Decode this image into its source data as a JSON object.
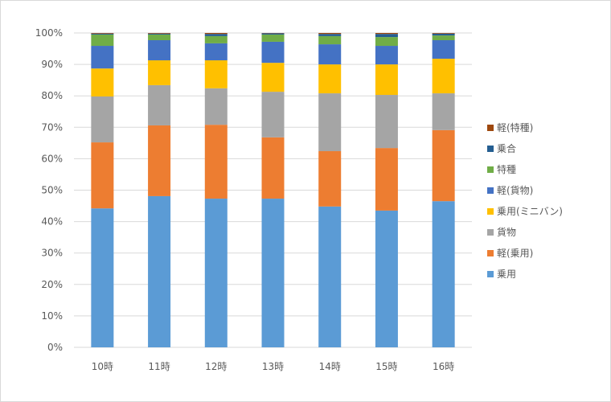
{
  "chart_data": {
    "type": "bar",
    "stacked": "percent",
    "title": "",
    "xlabel": "",
    "ylabel": "",
    "ylim": [
      0,
      100
    ],
    "yticks": [
      "0%",
      "10%",
      "20%",
      "30%",
      "40%",
      "50%",
      "60%",
      "70%",
      "80%",
      "90%",
      "100%"
    ],
    "grid": true,
    "legend_position": "right",
    "categories": [
      "10時",
      "11時",
      "12時",
      "13時",
      "14時",
      "15時",
      "16時"
    ],
    "series": [
      {
        "name": "乗用",
        "color": "#5B9BD5",
        "values": [
          44.2,
          48.1,
          47.3,
          47.3,
          44.8,
          43.5,
          46.5
        ]
      },
      {
        "name": "軽(乗用)",
        "color": "#ED7D31",
        "values": [
          21.0,
          22.5,
          23.5,
          19.5,
          17.6,
          19.9,
          22.6
        ]
      },
      {
        "name": "貨物",
        "color": "#A5A5A5",
        "values": [
          14.6,
          12.8,
          11.6,
          14.5,
          18.4,
          16.9,
          11.7
        ]
      },
      {
        "name": "乗用(ミニバン)",
        "color": "#FFC000",
        "values": [
          8.9,
          7.9,
          8.9,
          9.2,
          9.2,
          9.7,
          11.0
        ]
      },
      {
        "name": "軽(貨物)",
        "color": "#4472C4",
        "values": [
          7.2,
          6.4,
          5.4,
          6.7,
          6.4,
          5.9,
          5.9
        ]
      },
      {
        "name": "特種",
        "color": "#70AD47",
        "values": [
          3.6,
          1.8,
          2.3,
          2.3,
          2.6,
          2.8,
          1.5
        ]
      },
      {
        "name": "乗合",
        "color": "#255E91",
        "values": [
          0.3,
          0.3,
          0.7,
          0.4,
          0.7,
          1.0,
          0.6
        ]
      },
      {
        "name": "軽(特種)",
        "color": "#9E480E",
        "values": [
          0.2,
          0.2,
          0.3,
          0.1,
          0.3,
          0.3,
          0.2
        ]
      }
    ]
  }
}
